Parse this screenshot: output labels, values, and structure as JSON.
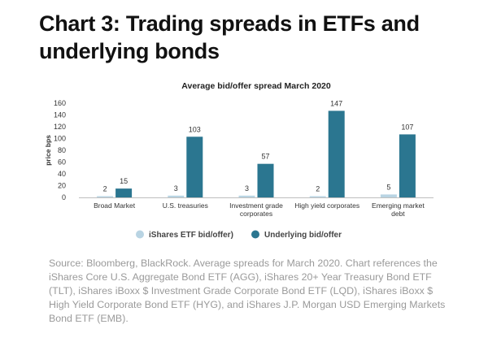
{
  "page": {
    "heading": "Chart 3: Trading spreads in ETFs and underlying bonds",
    "source": "Source: Bloomberg, BlackRock. Average spreads for March 2020. Chart references the iShares Core U.S. Aggregate Bond ETF (AGG), iShares 20+ Year Treasury Bond ETF (TLT), iShares iBoxx $ Investment Grade Corporate Bond ETF (LQD), iShares iBoxx $ High Yield Corporate Bond ETF (HYG), and iShares J.P. Morgan USD Emerging Markets Bond ETF (EMB)."
  },
  "chart_data": {
    "type": "bar",
    "title": "Average bid/offer spread March 2020",
    "ylabel": "price bps",
    "xlabel": "",
    "ylim": [
      0,
      160
    ],
    "yticks": [
      0,
      20,
      40,
      60,
      80,
      100,
      120,
      140,
      160
    ],
    "grid": false,
    "legend_position": "bottom",
    "categories": [
      [
        "Broad Market"
      ],
      [
        "U.S. treasuries"
      ],
      [
        "Investment grade",
        "corporates"
      ],
      [
        "High yield corporates"
      ],
      [
        "Emerging market",
        "debt"
      ]
    ],
    "series": [
      {
        "name": "iShares ETF bid/offer)",
        "color": "#b9d4e3",
        "values": [
          2,
          3,
          3,
          2,
          5
        ]
      },
      {
        "name": "Underlying  bid/offer",
        "color": "#2b7690",
        "values": [
          15,
          103,
          57,
          147,
          107
        ]
      }
    ]
  }
}
